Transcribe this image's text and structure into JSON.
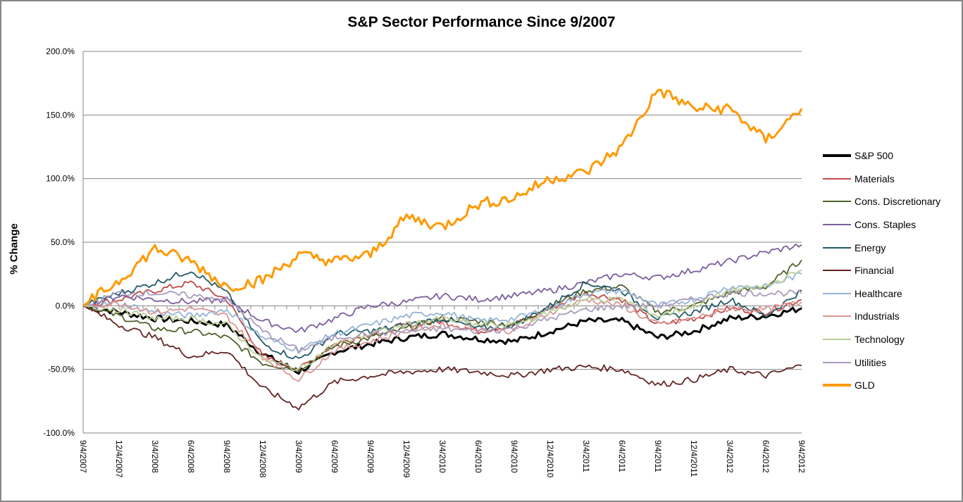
{
  "chart_data": {
    "type": "line",
    "title": "S&P Sector Performance Since 9/2007",
    "xlabel": "",
    "ylabel": "% Change",
    "ylim": [
      -100,
      200
    ],
    "yticks": [
      "-100.0%",
      "-50.0%",
      "0.0%",
      "50.0%",
      "100.0%",
      "150.0%",
      "200.0%"
    ],
    "ytick_values": [
      -100,
      -50,
      0,
      50,
      100,
      150,
      200
    ],
    "grid": "horizontal",
    "legend_position": "right",
    "x_tick_labels": [
      "9/4/2007",
      "12/4/2007",
      "3/4/2008",
      "6/4/2008",
      "9/4/2008",
      "12/4/2008",
      "3/4/2009",
      "6/4/2009",
      "9/4/2009",
      "12/4/2009",
      "3/4/2010",
      "6/4/2010",
      "9/4/2010",
      "12/4/2010",
      "3/4/2011",
      "6/4/2011",
      "9/4/2011",
      "12/4/2011",
      "3/4/2012",
      "6/4/2012",
      "9/4/2012"
    ],
    "x": [
      "9/4/2007",
      "12/4/2007",
      "3/4/2008",
      "6/4/2008",
      "9/4/2008",
      "12/4/2008",
      "3/4/2009",
      "6/4/2009",
      "9/4/2009",
      "12/4/2009",
      "3/4/2010",
      "6/4/2010",
      "9/4/2010",
      "12/4/2010",
      "3/4/2011",
      "6/4/2011",
      "9/4/2011",
      "12/4/2011",
      "3/4/2012",
      "6/4/2012",
      "9/4/2012"
    ],
    "series": [
      {
        "name": "S&P 500",
        "color": "#000000",
        "width": "thick",
        "values": [
          0,
          -5,
          -10,
          -12,
          -15,
          -38,
          -52,
          -36,
          -30,
          -25,
          -22,
          -26,
          -28,
          -20,
          -12,
          -12,
          -25,
          -20,
          -10,
          -8,
          -2
        ]
      },
      {
        "name": "Materials",
        "color": "#BE4B48",
        "width": "thin",
        "values": [
          0,
          5,
          12,
          18,
          5,
          -40,
          -50,
          -30,
          -22,
          -15,
          -12,
          -20,
          -15,
          -2,
          10,
          5,
          -15,
          -10,
          -2,
          -5,
          5
        ]
      },
      {
        "name": "Cons. Discretionary",
        "color": "#4F6228",
        "width": "thin",
        "values": [
          0,
          -8,
          -18,
          -20,
          -25,
          -45,
          -50,
          -32,
          -25,
          -18,
          -10,
          -12,
          -15,
          0,
          12,
          15,
          -5,
          0,
          10,
          15,
          36
        ]
      },
      {
        "name": "Cons. Staples",
        "color": "#7D5E9E",
        "width": "thin",
        "values": [
          0,
          8,
          5,
          3,
          5,
          -12,
          -20,
          -10,
          0,
          3,
          8,
          5,
          8,
          12,
          18,
          25,
          22,
          28,
          35,
          42,
          48
        ]
      },
      {
        "name": "Energy",
        "color": "#215967",
        "width": "thin",
        "values": [
          0,
          10,
          18,
          28,
          10,
          -30,
          -42,
          -22,
          -20,
          -15,
          -10,
          -18,
          -15,
          0,
          18,
          12,
          -10,
          -5,
          5,
          -8,
          12
        ]
      },
      {
        "name": "Financial",
        "color": "#632523",
        "width": "thin",
        "values": [
          0,
          -15,
          -25,
          -40,
          -35,
          -65,
          -80,
          -60,
          -55,
          -52,
          -50,
          -52,
          -55,
          -50,
          -48,
          -50,
          -62,
          -58,
          -50,
          -55,
          -47
        ]
      },
      {
        "name": "Healthcare",
        "color": "#95B3D7",
        "width": "thin",
        "values": [
          0,
          2,
          -5,
          -8,
          -3,
          -25,
          -35,
          -22,
          -15,
          -8,
          -5,
          -12,
          -10,
          -2,
          10,
          12,
          0,
          5,
          15,
          15,
          25
        ]
      },
      {
        "name": "Industrials",
        "color": "#D99694",
        "width": "thin",
        "values": [
          0,
          2,
          -5,
          -2,
          -8,
          -40,
          -58,
          -35,
          -28,
          -20,
          -15,
          -18,
          -20,
          -5,
          5,
          0,
          -15,
          -10,
          -2,
          -3,
          3
        ]
      },
      {
        "name": "Technology",
        "color": "#B9CD96",
        "width": "thin",
        "values": [
          0,
          -3,
          -10,
          -10,
          -15,
          -42,
          -50,
          -30,
          -22,
          -15,
          -10,
          -15,
          -15,
          -5,
          5,
          5,
          -8,
          0,
          12,
          15,
          28
        ]
      },
      {
        "name": "Utilities",
        "color": "#A99BBD",
        "width": "thin",
        "values": [
          0,
          10,
          10,
          8,
          5,
          -20,
          -35,
          -25,
          -22,
          -20,
          -18,
          -20,
          -18,
          -10,
          -3,
          0,
          0,
          5,
          10,
          10,
          10
        ]
      },
      {
        "name": "GLD",
        "color": "#FF9900",
        "width": "thick",
        "values": [
          0,
          20,
          45,
          35,
          15,
          20,
          40,
          35,
          40,
          70,
          62,
          80,
          85,
          100,
          105,
          125,
          170,
          155,
          155,
          130,
          155
        ]
      }
    ]
  }
}
